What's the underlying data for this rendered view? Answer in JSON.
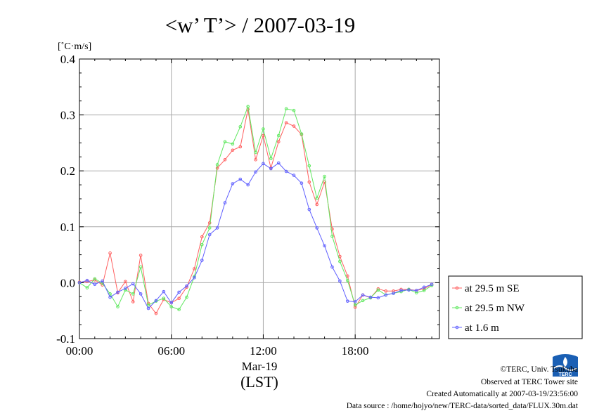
{
  "chart_data": {
    "type": "line",
    "title": "<w’ T’> / 2007-03-19",
    "ylabel": "[˚C·m/s]",
    "xlabel_date": "Mar-19",
    "xlabel_tz": "(LST)",
    "ylim": [
      -0.1,
      0.4
    ],
    "yticks": [
      -0.1,
      0.0,
      0.1,
      0.2,
      0.3,
      0.4
    ],
    "ytick_labels": [
      "-0.1",
      "0.0",
      "0.1",
      "0.2",
      "0.3",
      "0.4"
    ],
    "xlim_hours": [
      0,
      23.5
    ],
    "xticks_hours": [
      0,
      6,
      12,
      18
    ],
    "xtick_labels": [
      "00:00",
      "06:00",
      "12:00",
      "18:00"
    ],
    "grid": true,
    "legend_position": "right",
    "x_hours": [
      0,
      0.5,
      1,
      1.5,
      2,
      2.5,
      3,
      3.5,
      4,
      4.5,
      5,
      5.5,
      6,
      6.5,
      7,
      7.5,
      8,
      8.5,
      9,
      9.5,
      10,
      10.5,
      11,
      11.5,
      12,
      12.5,
      13,
      13.5,
      14,
      14.5,
      15,
      15.5,
      16,
      16.5,
      17,
      17.5,
      18,
      18.5,
      19,
      19.5,
      20,
      20.5,
      21,
      21.5,
      22,
      22.5,
      23
    ],
    "series": [
      {
        "name": "at 29.5 m SE",
        "color": "#ff6060",
        "values": [
          0.001,
          0.002,
          0.005,
          -0.004,
          0.053,
          -0.018,
          0.002,
          -0.034,
          0.049,
          -0.037,
          -0.055,
          -0.03,
          -0.036,
          -0.028,
          -0.008,
          0.025,
          0.082,
          0.107,
          0.205,
          0.22,
          0.237,
          0.243,
          0.31,
          0.22,
          0.263,
          0.205,
          0.252,
          0.286,
          0.28,
          0.265,
          0.18,
          0.14,
          0.18,
          0.096,
          0.047,
          0.012,
          -0.044,
          -0.022,
          -0.027,
          -0.011,
          -0.015,
          -0.015,
          -0.012,
          -0.012,
          -0.014,
          -0.011,
          -0.003
        ]
      },
      {
        "name": "at 29.5 m NW",
        "color": "#60e860",
        "values": [
          0.0,
          -0.009,
          0.007,
          -0.001,
          -0.02,
          -0.043,
          -0.013,
          -0.02,
          0.028,
          -0.04,
          -0.033,
          -0.028,
          -0.043,
          -0.048,
          -0.026,
          0.011,
          0.068,
          0.098,
          0.211,
          0.252,
          0.248,
          0.279,
          0.315,
          0.233,
          0.275,
          0.222,
          0.263,
          0.311,
          0.308,
          0.266,
          0.209,
          0.151,
          0.19,
          0.083,
          0.038,
          0.004,
          -0.04,
          -0.032,
          -0.027,
          -0.013,
          -0.022,
          -0.019,
          -0.016,
          -0.012,
          -0.018,
          -0.014,
          -0.005
        ]
      },
      {
        "name": "at 1.6 m",
        "color": "#6060ff",
        "values": [
          0.0,
          0.004,
          -0.003,
          0.003,
          -0.026,
          -0.017,
          -0.01,
          -0.002,
          -0.02,
          -0.046,
          -0.032,
          -0.016,
          -0.036,
          -0.017,
          -0.006,
          0.009,
          0.04,
          0.086,
          0.098,
          0.143,
          0.177,
          0.185,
          0.175,
          0.198,
          0.213,
          0.204,
          0.214,
          0.199,
          0.192,
          0.178,
          0.131,
          0.098,
          0.066,
          0.028,
          0.003,
          -0.033,
          -0.034,
          -0.022,
          -0.026,
          -0.027,
          -0.022,
          -0.019,
          -0.014,
          -0.013,
          -0.014,
          -0.008,
          -0.003
        ]
      }
    ]
  },
  "footer": {
    "copyright": "©TERC, Univ. Tsukuba",
    "site": "Observed at TERC Tower site",
    "created": "Created Automatically at 2007-03-19/23:56:00",
    "source": "Data source : /home/hojyo/new/TERC-data/sorted_data/FLUX.30m.dat",
    "logo_text": "TERC"
  }
}
